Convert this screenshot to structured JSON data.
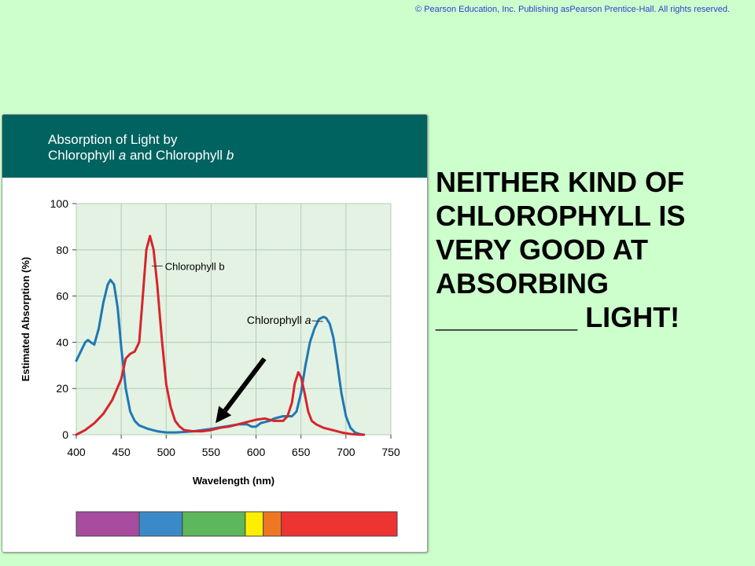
{
  "copyright": "© Pearson Education, Inc. Publishing asPearson Prentice-Hall.   All rights reserved.",
  "panel": {
    "title_line1": "Absorption of Light by",
    "title_line2_parts": [
      "Chlorophyll ",
      "a",
      " and Chlorophyll ",
      "b"
    ]
  },
  "colors": {
    "background": "#ccffcc",
    "header": "#00635f",
    "plot_bg": "#e3f2e3",
    "chlorophyll_a": "#1f78b4",
    "chlorophyll_b": "#d8242b"
  },
  "callout": {
    "lines": [
      "NEITHER KIND OF",
      "CHLOROPHYLL IS",
      "VERY GOOD AT",
      "ABSORBING",
      "_________ LIGHT!"
    ]
  },
  "chart_data": {
    "type": "line",
    "xlabel": "Wavelength (nm)",
    "ylabel": "Estimated Absorption (%)",
    "xlim": [
      400,
      750
    ],
    "ylim": [
      0,
      100
    ],
    "x_ticks": [
      400,
      450,
      500,
      550,
      600,
      650,
      700,
      750
    ],
    "y_ticks": [
      0,
      20,
      40,
      60,
      80,
      100
    ],
    "grid": true,
    "series": [
      {
        "name": "Chlorophyll a",
        "label_parts": [
          "Chlorophyll ",
          "a"
        ],
        "color": "#1f78b4",
        "x": [
          400,
          405,
          410,
          413,
          416,
          420,
          425,
          430,
          435,
          438,
          442,
          446,
          450,
          455,
          460,
          465,
          470,
          480,
          490,
          500,
          510,
          520,
          530,
          540,
          550,
          560,
          570,
          580,
          590,
          595,
          600,
          605,
          610,
          615,
          620,
          630,
          640,
          645,
          650,
          655,
          660,
          665,
          670,
          675,
          678,
          682,
          686,
          690,
          695,
          700,
          705,
          710,
          715,
          720
        ],
        "y": [
          32,
          36,
          40,
          41,
          40,
          39,
          46,
          57,
          65,
          67,
          65,
          55,
          38,
          20,
          10,
          6,
          4,
          2.5,
          1.5,
          1,
          1,
          1.2,
          1.5,
          2,
          2.5,
          3.2,
          3.8,
          4.5,
          4.5,
          3.5,
          3.5,
          5,
          5.5,
          6,
          7,
          8,
          8,
          10,
          18,
          30,
          40,
          46,
          50,
          51,
          50.5,
          48,
          42,
          32,
          18,
          8,
          3,
          1,
          0.3,
          0
        ]
      },
      {
        "name": "Chlorophyll b",
        "label_parts": [
          "Chlorophyll b"
        ],
        "color": "#d8242b",
        "x": [
          400,
          410,
          420,
          430,
          440,
          450,
          455,
          460,
          465,
          470,
          474,
          478,
          482,
          486,
          490,
          495,
          500,
          505,
          510,
          515,
          520,
          530,
          540,
          550,
          560,
          570,
          580,
          590,
          600,
          610,
          620,
          630,
          635,
          640,
          643,
          647,
          650,
          654,
          658,
          662,
          667,
          675,
          685,
          695,
          705,
          715,
          720
        ],
        "y": [
          0,
          2,
          5,
          9,
          15,
          24,
          33,
          35,
          36,
          40,
          60,
          80,
          86,
          80,
          65,
          42,
          22,
          12,
          6,
          3.5,
          2,
          1.5,
          1.5,
          2,
          3,
          3.5,
          4.5,
          5.5,
          6.5,
          7,
          6,
          6,
          8,
          14,
          22,
          27,
          25,
          18,
          10,
          6,
          4.5,
          3,
          2,
          1,
          0.3,
          0,
          0
        ]
      }
    ],
    "annotation": {
      "type": "arrow",
      "x": 555,
      "y": 5
    },
    "spectrum": [
      {
        "from": 400,
        "to": 470,
        "color": "#a84ca0"
      },
      {
        "from": 470,
        "to": 518,
        "color": "#3b8ac8"
      },
      {
        "from": 518,
        "to": 588,
        "color": "#5cb85a"
      },
      {
        "from": 588,
        "to": 608,
        "color": "#ffee00"
      },
      {
        "from": 608,
        "to": 628,
        "color": "#ee7722"
      },
      {
        "from": 628,
        "to": 757,
        "color": "#ee3333"
      }
    ]
  }
}
